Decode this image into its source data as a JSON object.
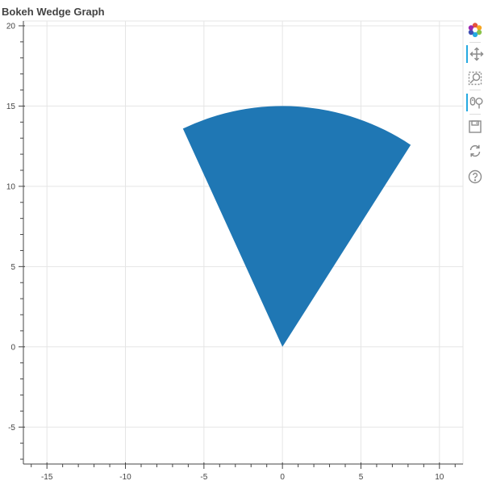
{
  "chart_data": {
    "type": "wedge",
    "title": "Bokeh Wedge Graph",
    "xlabel": "",
    "ylabel": "",
    "xlim": [
      -16.5,
      11.5
    ],
    "ylim": [
      -7.3,
      20.3
    ],
    "grid": true,
    "color": "#1f77b4",
    "wedge": {
      "x": 0,
      "y": 0,
      "radius": 15,
      "start_angle_deg": 57,
      "end_angle_deg": 115
    },
    "x_ticks": [
      {
        "value": -15,
        "label": "-15"
      },
      {
        "value": -10,
        "label": "-10"
      },
      {
        "value": -5,
        "label": "-5"
      },
      {
        "value": 0,
        "label": "0"
      },
      {
        "value": 5,
        "label": "5"
      },
      {
        "value": 10,
        "label": "10"
      }
    ],
    "y_ticks": [
      {
        "value": -5,
        "label": "-5"
      },
      {
        "value": 0,
        "label": "0"
      },
      {
        "value": 5,
        "label": "5"
      },
      {
        "value": 10,
        "label": "10"
      },
      {
        "value": 15,
        "label": "15"
      },
      {
        "value": 20,
        "label": "20"
      }
    ]
  },
  "toolbar": {
    "tools": [
      {
        "name": "bokeh-logo-icon",
        "active": false
      },
      {
        "name": "pan-tool-icon",
        "active": true
      },
      {
        "name": "box-zoom-tool-icon",
        "active": false
      },
      {
        "name": "wheel-zoom-tool-icon",
        "active": true
      },
      {
        "name": "save-tool-icon",
        "active": false
      },
      {
        "name": "reset-tool-icon",
        "active": false
      },
      {
        "name": "help-tool-icon",
        "active": false
      }
    ]
  }
}
